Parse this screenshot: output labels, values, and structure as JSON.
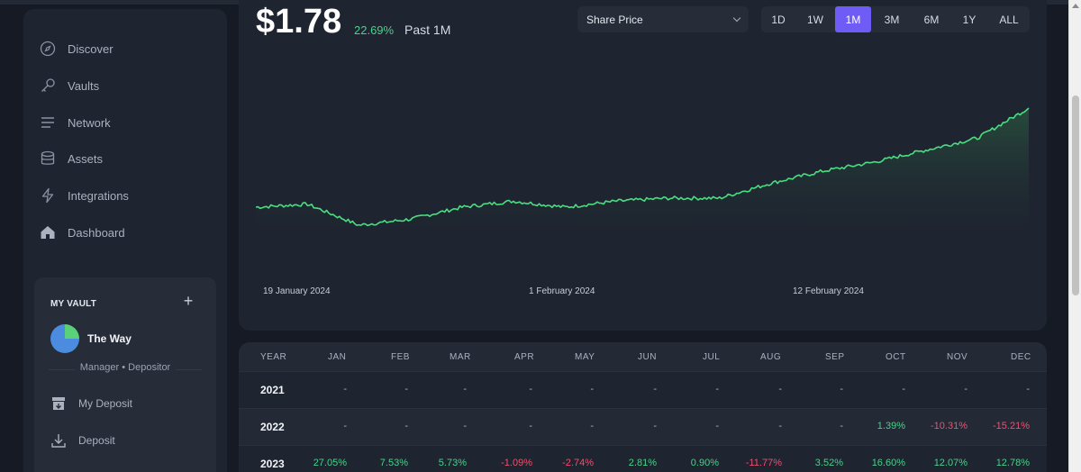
{
  "sidebar": {
    "nav": [
      {
        "label": "Discover",
        "icon": "compass-icon"
      },
      {
        "label": "Vaults",
        "icon": "key-icon"
      },
      {
        "label": "Network",
        "icon": "list-icon"
      },
      {
        "label": "Assets",
        "icon": "database-icon"
      },
      {
        "label": "Integrations",
        "icon": "lightning-icon"
      },
      {
        "label": "Dashboard",
        "icon": "home-icon"
      }
    ],
    "vault": {
      "header": "MY VAULT",
      "name": "The Way",
      "role": "Manager • Depositor",
      "links": [
        {
          "label": "My Deposit",
          "icon": "inbox-icon"
        },
        {
          "label": "Deposit",
          "icon": "download-icon"
        }
      ]
    }
  },
  "summary": {
    "price": "$1.78",
    "change": "22.69%",
    "period": "Past 1M",
    "metric_select": "Share Price",
    "ranges": [
      "1D",
      "1W",
      "1M",
      "3M",
      "6M",
      "1Y",
      "ALL"
    ],
    "active_range": "1M"
  },
  "chart_data": {
    "type": "area",
    "title": "",
    "x_tick_labels": [
      "19 January 2024",
      "1 February 2024",
      "12 February 2024"
    ],
    "x": [
      "2024-01-19",
      "2024-01-21",
      "2024-01-23",
      "2024-01-25",
      "2024-01-27",
      "2024-01-29",
      "2024-01-31",
      "2024-02-02",
      "2024-02-04",
      "2024-02-06",
      "2024-02-08",
      "2024-02-10",
      "2024-02-12",
      "2024-02-14",
      "2024-02-16",
      "2024-02-18"
    ],
    "values": [
      1.45,
      1.46,
      1.39,
      1.41,
      1.45,
      1.47,
      1.45,
      1.47,
      1.48,
      1.48,
      1.53,
      1.57,
      1.6,
      1.64,
      1.68,
      1.78
    ],
    "color": "#4ade80",
    "grid": false
  },
  "returns_table": {
    "headers": [
      "YEAR",
      "JAN",
      "FEB",
      "MAR",
      "APR",
      "MAY",
      "JUN",
      "JUL",
      "AUG",
      "SEP",
      "OCT",
      "NOV",
      "DEC"
    ],
    "rows": [
      {
        "year": "2021",
        "values": [
          "-",
          "-",
          "-",
          "-",
          "-",
          "-",
          "-",
          "-",
          "-",
          "-",
          "-",
          "-"
        ]
      },
      {
        "year": "2022",
        "values": [
          "-",
          "-",
          "-",
          "-",
          "-",
          "-",
          "-",
          "-",
          "-",
          "1.39%",
          "-10.31%",
          "-15.21%"
        ]
      },
      {
        "year": "2023",
        "values": [
          "27.05%",
          "7.53%",
          "5.73%",
          "-1.09%",
          "-2.74%",
          "2.81%",
          "0.90%",
          "-11.77%",
          "3.52%",
          "16.60%",
          "12.07%",
          "12.78%"
        ]
      }
    ]
  },
  "colors": {
    "accent": "#6f5cf6",
    "positive": "#4bd18a",
    "negative": "#f0506e"
  }
}
